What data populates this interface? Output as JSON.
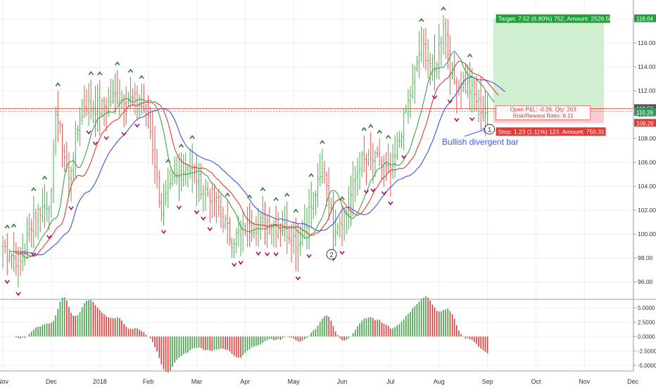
{
  "chart_data": {
    "type": "candlestick",
    "instrument_panel": {
      "price_axis": {
        "ylim": [
          94.6,
          119.6
        ],
        "ticks": [
          "96.00",
          "98.00",
          "100.00",
          "102.00",
          "104.00",
          "106.00",
          "108.00",
          "110.00",
          "112.00",
          "114.00",
          "116.00",
          "118.00"
        ],
        "tick_values": [
          96,
          98,
          100,
          102,
          104,
          106,
          108,
          110,
          112,
          114,
          116,
          118
        ]
      },
      "time_axis": {
        "labels": [
          "Nov",
          "Dec",
          "2018",
          "Feb",
          "Mar",
          "Apr",
          "May",
          "Jun",
          "Jul",
          "Aug",
          "Sep",
          "Oct",
          "Nov",
          "Dec"
        ],
        "label_bar_index": [
          0,
          22,
          44,
          66,
          88,
          110,
          132,
          154,
          176,
          198,
          220,
          242,
          264,
          286
        ]
      },
      "grid": true,
      "price_labels": [
        {
          "text": "118.04",
          "value": 118.04,
          "color": "#1e9f3a"
        },
        {
          "text": "110.52",
          "value": 110.52,
          "color": "#555555"
        },
        {
          "text": "110.26",
          "value": 110.26,
          "color": "#2e9b5e"
        },
        {
          "text": "109.29",
          "value": 109.29,
          "color": "#e53935"
        }
      ],
      "trade": {
        "entry": 110.52,
        "target": 118.04,
        "stop": 109.29,
        "target_label": "Target: 7.52 (6.80%) 752, Amount: 2526.56",
        "pnl_label": "Open P&L: -0.26, Qty: 203",
        "rr_label": "Risk/Reward Ratio: 6.11",
        "stop_label": "Stop: 1.23 (1.11%) 123, Amount: 750.31"
      },
      "annotations": [
        {
          "text": "Bullish divergent bar",
          "color": "#3d5afe"
        },
        {
          "text": "2",
          "color": "#333333"
        },
        {
          "text": "1",
          "color": "#333333"
        }
      ],
      "series": [
        {
          "type": "ohlc_bars",
          "up_color": "#4caf50",
          "down_color": "#ef5350"
        },
        {
          "type": "line",
          "color": "#3f51e0"
        },
        {
          "type": "line",
          "color": "#e53935"
        },
        {
          "type": "line",
          "color": "#43a047"
        }
      ],
      "anchors": [
        [
          0,
          99.0
        ],
        [
          8,
          97.6
        ],
        [
          14,
          101.5
        ],
        [
          22,
          103.0
        ],
        [
          24,
          110.5
        ],
        [
          30,
          104.5
        ],
        [
          36,
          111.0
        ],
        [
          44,
          110.5
        ],
        [
          52,
          111.6
        ],
        [
          62,
          111.0
        ],
        [
          66,
          110.0
        ],
        [
          72,
          102.0
        ],
        [
          78,
          104.5
        ],
        [
          84,
          106.0
        ],
        [
          90,
          104.0
        ],
        [
          96,
          103.0
        ],
        [
          104,
          99.5
        ],
        [
          110,
          100.5
        ],
        [
          120,
          101.0
        ],
        [
          128,
          100.5
        ],
        [
          134,
          99.2
        ],
        [
          140,
          102.5
        ],
        [
          146,
          105.5
        ],
        [
          150,
          100.6
        ],
        [
          156,
          101.8
        ],
        [
          162,
          106.0
        ],
        [
          170,
          106.2
        ],
        [
          176,
          105.0
        ],
        [
          184,
          111.0
        ],
        [
          190,
          116.0
        ],
        [
          196,
          113.5
        ],
        [
          200,
          117.8
        ],
        [
          204,
          112.8
        ],
        [
          212,
          112.2
        ],
        [
          218,
          110.3
        ],
        [
          220,
          110.26
        ]
      ]
    },
    "ao_panel": {
      "type": "bar",
      "ylim": [
        -6.0,
        6.2
      ],
      "ticks": [
        "5.0000",
        "2.5000",
        "0.0000",
        "-2.5000",
        "-5.0000"
      ],
      "tick_values": [
        5,
        2.5,
        0,
        -2.5,
        -5
      ],
      "up_color": "#43a047",
      "down_color": "#e53935"
    }
  }
}
